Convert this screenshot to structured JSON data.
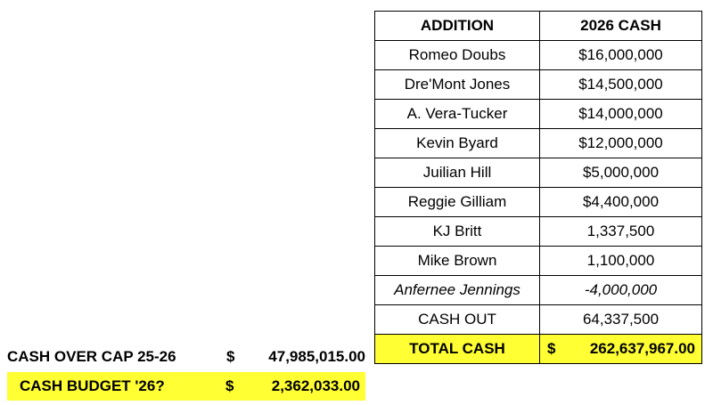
{
  "table": {
    "headers": [
      "ADDITION",
      "2026 CASH"
    ],
    "rows": [
      {
        "name": "Romeo Doubs",
        "cash": "$16,000,000"
      },
      {
        "name": "Dre'Mont Jones",
        "cash": "$14,500,000"
      },
      {
        "name": "A. Vera-Tucker",
        "cash": "$14,000,000"
      },
      {
        "name": "Kevin Byard",
        "cash": "$12,000,000"
      },
      {
        "name": "Juilian Hill",
        "cash": "$5,000,000"
      },
      {
        "name": "Reggie Gilliam",
        "cash": "$4,400,000"
      },
      {
        "name": "KJ Britt",
        "cash": "1,337,500"
      },
      {
        "name": "Mike Brown",
        "cash": "1,100,000"
      },
      {
        "name": "Anfernee Jennings",
        "cash": "-4,000,000"
      },
      {
        "name": "CASH OUT",
        "cash": "64,337,500"
      }
    ],
    "total": {
      "label": "TOTAL CASH",
      "currency": "$",
      "value": "262,637,967.00"
    }
  },
  "summary": {
    "over_cap": {
      "label": "CASH OVER CAP 25-26",
      "currency": "$",
      "value": "47,985,015.00"
    },
    "budget": {
      "label": "CASH BUDGET '26?",
      "currency": "$",
      "value": "2,362,033.00"
    }
  },
  "colors": {
    "highlight": "#ffff33",
    "border": "#000000"
  }
}
